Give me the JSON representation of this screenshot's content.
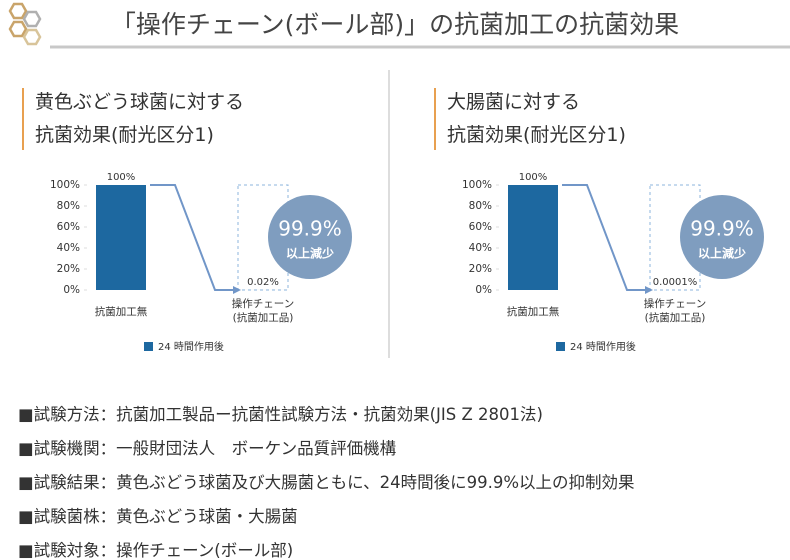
{
  "header": {
    "title": "「操作チェーン(ボール部)」の抗菌加工の抗菌効果"
  },
  "chart_data": [
    {
      "type": "bar",
      "title": "黄色ぶどう球菌に対する\n抗菌効果(耐光区分1)",
      "categories": [
        "抗菌加工無",
        "操作チェーン\n(抗菌加工品)"
      ],
      "series": [
        {
          "name": "24 時間作用後",
          "color": "#1d68a0",
          "values": [
            100,
            0.02
          ],
          "value_labels": [
            "100%",
            "0.02%"
          ]
        }
      ],
      "ylim": [
        0,
        100
      ],
      "yticks": [
        {
          "value": 0,
          "label": "0%"
        },
        {
          "value": 20,
          "label": "20%"
        },
        {
          "value": 40,
          "label": "40%"
        },
        {
          "value": 60,
          "label": "60%"
        },
        {
          "value": 80,
          "label": "80%"
        },
        {
          "value": 100,
          "label": "100%"
        }
      ],
      "badge": {
        "value": "99.9%",
        "note": "以上減少"
      }
    },
    {
      "type": "bar",
      "title": "大腸菌に対する\n抗菌効果(耐光区分1)",
      "categories": [
        "抗菌加工無",
        "操作チェーン\n(抗菌加工品)"
      ],
      "series": [
        {
          "name": "24 時間作用後",
          "color": "#1d68a0",
          "values": [
            100,
            0.0001
          ],
          "value_labels": [
            "100%",
            "0.0001%"
          ]
        }
      ],
      "ylim": [
        0,
        100
      ],
      "yticks": [
        {
          "value": 0,
          "label": "0%"
        },
        {
          "value": 20,
          "label": "20%"
        },
        {
          "value": 40,
          "label": "40%"
        },
        {
          "value": 60,
          "label": "60%"
        },
        {
          "value": 80,
          "label": "80%"
        },
        {
          "value": 100,
          "label": "100%"
        }
      ],
      "badge": {
        "value": "99.9%",
        "note": "以上減少"
      }
    }
  ],
  "notes": [
    "■試験方法：抗菌加工製品ー抗菌性試験方法・抗菌効果(JIS Z 2801法)",
    "■試験機関：一般財団法人　ボーケン品質評価機構",
    "■試験結果：黄色ぶどう球菌及び大腸菌ともに、24時間後に99.9%以上の抑制効果",
    "■試験菌株：黄色ぶどう球菌・大腸菌",
    "■試験対象：操作チェーン(ボール部)"
  ]
}
